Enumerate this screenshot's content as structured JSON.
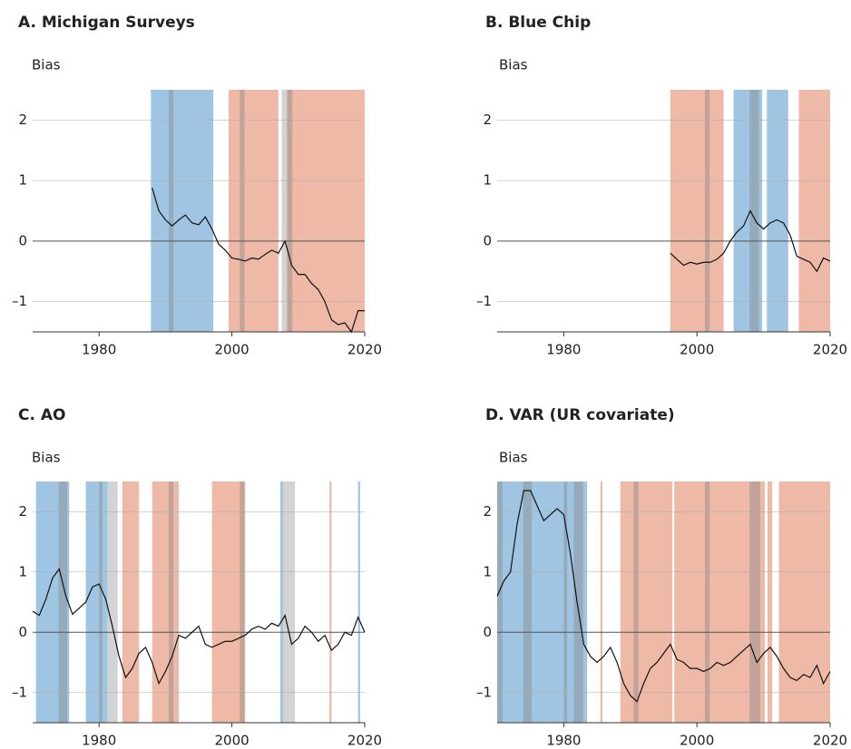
{
  "chart_data": [
    {
      "type": "line",
      "title": "A. Michigan Surveys",
      "y_label": "Bias",
      "xlim": [
        1970,
        2020
      ],
      "ylim": [
        -1.5,
        2.5
      ],
      "xticks": [
        1980,
        2000,
        2020
      ],
      "yticks": [
        {
          "value": -1,
          "label": "–1"
        },
        0,
        1,
        2
      ],
      "regions": [
        {
          "start": 1987.8,
          "end": 1997.2,
          "color": "#9fc5e2"
        },
        {
          "start": 1999.5,
          "end": 2007,
          "color": "#efb9a7"
        },
        {
          "start": 2007.5,
          "end": 2008.3,
          "color": "#d3d3d3"
        },
        {
          "start": 2008.3,
          "end": 2020,
          "color": "#efb9a7"
        },
        {
          "start": 1990.5,
          "end": 1991.2,
          "color": "#8a8a8a"
        },
        {
          "start": 2001.2,
          "end": 2001.9,
          "color": "#8a8a8a"
        },
        {
          "start": 2008.3,
          "end": 2009.1,
          "color": "#8a8a8a"
        }
      ],
      "series": [
        {
          "color": "#111111",
          "x": [
            1988,
            1989,
            1990,
            1991,
            1992,
            1993,
            1994,
            1995,
            1996,
            1997,
            1998,
            1999,
            2000,
            2001,
            2002,
            2003,
            2004,
            2005,
            2006,
            2007,
            2008,
            2009,
            2010,
            2011,
            2012,
            2013,
            2014,
            2015,
            2016,
            2017,
            2018,
            2019,
            2020
          ],
          "values": [
            0.88,
            0.5,
            0.35,
            0.25,
            0.35,
            0.43,
            0.3,
            0.27,
            0.4,
            0.2,
            -0.05,
            -0.15,
            -0.28,
            -0.3,
            -0.33,
            -0.28,
            -0.3,
            -0.22,
            -0.15,
            -0.2,
            0.0,
            -0.4,
            -0.55,
            -0.55,
            -0.7,
            -0.8,
            -1.0,
            -1.3,
            -1.38,
            -1.35,
            -1.5,
            -1.15,
            -1.15
          ]
        }
      ]
    },
    {
      "type": "line",
      "title": "B. Blue Chip",
      "y_label": "Bias",
      "xlim": [
        1970,
        2020
      ],
      "ylim": [
        -1.5,
        2.5
      ],
      "xticks": [
        1980,
        2000,
        2020
      ],
      "yticks": [
        {
          "value": -1,
          "label": "–1"
        },
        0,
        1,
        2
      ],
      "regions": [
        {
          "start": 1996,
          "end": 2004,
          "color": "#efb9a7"
        },
        {
          "start": 2005.5,
          "end": 2009.8,
          "color": "#9fc5e2"
        },
        {
          "start": 2010.5,
          "end": 2013.7,
          "color": "#9fc5e2"
        },
        {
          "start": 2015.3,
          "end": 2020,
          "color": "#efb9a7"
        },
        {
          "start": 2001.2,
          "end": 2001.9,
          "color": "#8a8a8a"
        },
        {
          "start": 2007.9,
          "end": 2009.3,
          "color": "#8a8a8a"
        }
      ],
      "series": [
        {
          "color": "#111111",
          "x": [
            1996,
            1997,
            1998,
            1999,
            2000,
            2001,
            2002,
            2003,
            2004,
            2005,
            2006,
            2007,
            2008,
            2009,
            2010,
            2011,
            2012,
            2013,
            2014,
            2015,
            2016,
            2017,
            2018,
            2019,
            2020
          ],
          "values": [
            -0.2,
            -0.3,
            -0.4,
            -0.35,
            -0.38,
            -0.35,
            -0.35,
            -0.3,
            -0.2,
            0.0,
            0.15,
            0.25,
            0.5,
            0.3,
            0.2,
            0.3,
            0.35,
            0.3,
            0.1,
            -0.25,
            -0.3,
            -0.35,
            -0.5,
            -0.28,
            -0.33
          ]
        }
      ]
    },
    {
      "type": "line",
      "title": "C. AO",
      "y_label": "Bias",
      "xlim": [
        1970,
        2020
      ],
      "ylim": [
        -1.5,
        2.5
      ],
      "xticks": [
        1980,
        2000,
        2020
      ],
      "yticks": [
        {
          "value": -1,
          "label": "–1"
        },
        0,
        1,
        2
      ],
      "regions": [
        {
          "start": 1970.5,
          "end": 1975.5,
          "color": "#9fc5e2"
        },
        {
          "start": 1978,
          "end": 1981.3,
          "color": "#9fc5e2"
        },
        {
          "start": 1981.3,
          "end": 1982.8,
          "color": "#d3d3d3"
        },
        {
          "start": 1983.5,
          "end": 1986,
          "color": "#efb9a7"
        },
        {
          "start": 1988,
          "end": 1992,
          "color": "#efb9a7"
        },
        {
          "start": 1997,
          "end": 2002,
          "color": "#efb9a7"
        },
        {
          "start": 2007.3,
          "end": 2007.7,
          "color": "#9fc5e2"
        },
        {
          "start": 2007.7,
          "end": 2009.5,
          "color": "#d3d3d3"
        },
        {
          "start": 2014.7,
          "end": 2015,
          "color": "#efb9a7"
        },
        {
          "start": 2019,
          "end": 2019.3,
          "color": "#9fc5e2"
        },
        {
          "start": 1973.9,
          "end": 1975.2,
          "color": "#8a8a8a"
        },
        {
          "start": 1980,
          "end": 1980.5,
          "color": "#8a8a8a"
        },
        {
          "start": 1990.5,
          "end": 1991.2,
          "color": "#8a8a8a"
        },
        {
          "start": 2001.2,
          "end": 2001.9,
          "color": "#8a8a8a"
        }
      ],
      "series": [
        {
          "color": "#111111",
          "x": [
            1970,
            1971,
            1972,
            1973,
            1974,
            1975,
            1976,
            1977,
            1978,
            1979,
            1980,
            1981,
            1982,
            1983,
            1984,
            1985,
            1986,
            1987,
            1988,
            1989,
            1990,
            1991,
            1992,
            1993,
            1994,
            1995,
            1996,
            1997,
            1998,
            1999,
            2000,
            2001,
            2002,
            2003,
            2004,
            2005,
            2006,
            2007,
            2008,
            2009,
            2010,
            2011,
            2012,
            2013,
            2014,
            2015,
            2016,
            2017,
            2018,
            2019,
            2020
          ],
          "values": [
            0.35,
            0.28,
            0.55,
            0.9,
            1.05,
            0.6,
            0.3,
            0.4,
            0.5,
            0.75,
            0.8,
            0.55,
            0.1,
            -0.4,
            -0.75,
            -0.6,
            -0.35,
            -0.25,
            -0.5,
            -0.85,
            -0.65,
            -0.4,
            -0.05,
            -0.1,
            0.0,
            0.1,
            -0.2,
            -0.25,
            -0.2,
            -0.15,
            -0.15,
            -0.1,
            -0.05,
            0.05,
            0.1,
            0.05,
            0.15,
            0.1,
            0.28,
            -0.2,
            -0.1,
            0.1,
            0.0,
            -0.15,
            -0.05,
            -0.3,
            -0.2,
            0.0,
            -0.05,
            0.25,
            0.0
          ]
        }
      ]
    },
    {
      "type": "line",
      "title": "D. VAR (UR covariate)",
      "y_label": "Bias",
      "xlim": [
        1970,
        2020
      ],
      "ylim": [
        -1.5,
        2.5
      ],
      "xticks": [
        1980,
        2000,
        2020
      ],
      "yticks": [
        {
          "value": -1,
          "label": "–1"
        },
        0,
        1,
        2
      ],
      "regions": [
        {
          "start": 1970,
          "end": 1983.5,
          "color": "#9fc5e2"
        },
        {
          "start": 1985.5,
          "end": 1985.8,
          "color": "#efb9a7"
        },
        {
          "start": 1988.5,
          "end": 1996.3,
          "color": "#efb9a7"
        },
        {
          "start": 1996.6,
          "end": 2010.2,
          "color": "#efb9a7"
        },
        {
          "start": 2010.6,
          "end": 2011.3,
          "color": "#efb9a7"
        },
        {
          "start": 2012.3,
          "end": 2020,
          "color": "#efb9a7"
        },
        {
          "start": 1970,
          "end": 1970.8,
          "color": "#8a8a8a"
        },
        {
          "start": 1973.9,
          "end": 1975.2,
          "color": "#8a8a8a"
        },
        {
          "start": 1980,
          "end": 1980.5,
          "color": "#8a8a8a"
        },
        {
          "start": 1981.5,
          "end": 1982.9,
          "color": "#8a8a8a"
        },
        {
          "start": 1990.5,
          "end": 1991.2,
          "color": "#8a8a8a"
        },
        {
          "start": 2001.2,
          "end": 2001.9,
          "color": "#8a8a8a"
        },
        {
          "start": 2007.9,
          "end": 2009.5,
          "color": "#8a8a8a"
        }
      ],
      "series": [
        {
          "color": "#111111",
          "x": [
            1970,
            1971,
            1972,
            1973,
            1974,
            1975,
            1976,
            1977,
            1978,
            1979,
            1980,
            1981,
            1982,
            1983,
            1984,
            1985,
            1986,
            1987,
            1988,
            1989,
            1990,
            1991,
            1992,
            1993,
            1994,
            1995,
            1996,
            1997,
            1998,
            1999,
            2000,
            2001,
            2002,
            2003,
            2004,
            2005,
            2006,
            2007,
            2008,
            2009,
            2010,
            2011,
            2012,
            2013,
            2014,
            2015,
            2016,
            2017,
            2018,
            2019,
            2020
          ],
          "values": [
            0.6,
            0.85,
            1.0,
            1.8,
            2.35,
            2.35,
            2.1,
            1.85,
            1.95,
            2.05,
            1.95,
            1.3,
            0.5,
            -0.2,
            -0.4,
            -0.5,
            -0.4,
            -0.25,
            -0.5,
            -0.85,
            -1.05,
            -1.15,
            -0.85,
            -0.6,
            -0.5,
            -0.35,
            -0.2,
            -0.45,
            -0.5,
            -0.6,
            -0.6,
            -0.65,
            -0.6,
            -0.5,
            -0.55,
            -0.5,
            -0.4,
            -0.3,
            -0.2,
            -0.5,
            -0.35,
            -0.25,
            -0.4,
            -0.6,
            -0.75,
            -0.8,
            -0.7,
            -0.75,
            -0.55,
            -0.85,
            -0.65
          ]
        }
      ]
    }
  ]
}
